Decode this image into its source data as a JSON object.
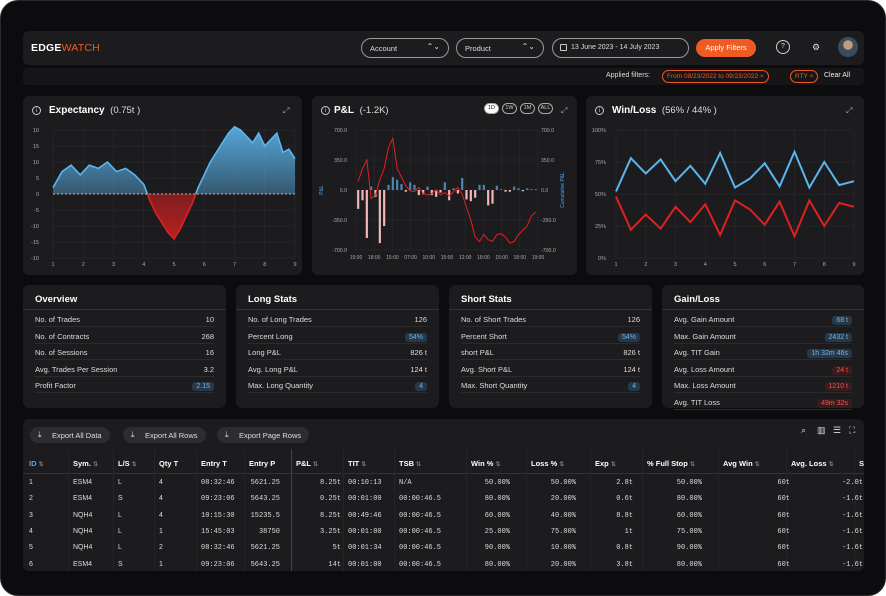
{
  "app": {
    "logo_part1": "EDGE",
    "logo_part2": "WATCH"
  },
  "topbar": {
    "account_label": "Account",
    "product_label": "Product",
    "date_range": "13 June 2023 - 14 July 2023",
    "apply_label": "Apply Filters",
    "help_icon": "?",
    "settings_icon": "⚙"
  },
  "filters": {
    "label": "Applied filters:",
    "date_pill": "From 08/23/2022 to 09/23/2022 ×",
    "symbol_pill": "RTY ×",
    "clear_label": "Clear All"
  },
  "expectancy": {
    "title": "Expectancy",
    "value": "(0.75t )",
    "chart_data": {
      "type": "area",
      "x_ticks": [
        "1",
        "2",
        "3",
        "4",
        "5",
        "6",
        "7",
        "8",
        "9"
      ],
      "y_ticks": [
        "10",
        "15",
        "10",
        "5",
        "0",
        "-5",
        "-10",
        "-15",
        "-10"
      ],
      "ylim": [
        -20,
        20
      ],
      "x": [
        1.0,
        1.3,
        1.6,
        1.9,
        2.2,
        2.5,
        2.8,
        3.1,
        3.4,
        3.7,
        4.0,
        4.2,
        4.4,
        4.6,
        4.8,
        5.0,
        5.2,
        5.4,
        5.6,
        5.8,
        6.0,
        6.2,
        6.4,
        6.6,
        6.8,
        7.0,
        7.2,
        7.4,
        7.6,
        7.8,
        8.0,
        8.2,
        8.4,
        8.6,
        8.8,
        9.0
      ],
      "y": [
        2,
        7,
        9,
        6,
        9,
        8,
        10,
        7,
        8,
        6,
        3,
        -2,
        -6,
        -9,
        -12,
        -14,
        -11,
        -7,
        -3,
        2,
        6,
        10,
        13,
        16,
        19,
        21,
        20,
        18,
        16,
        19,
        15,
        17,
        19,
        13,
        14,
        11
      ],
      "colors": {
        "positive": "#5cb6ee",
        "negative": "#e02020"
      }
    }
  },
  "pnl": {
    "title": "P&L",
    "value": "(-1.2K)",
    "ranges": [
      "1D",
      "1W",
      "1M",
      "ALL"
    ],
    "chart_data": {
      "type": "bar",
      "x_ticks": [
        "15:00",
        "18:00",
        "15:00",
        "07:00",
        "10:00",
        "15:00",
        "12:00",
        "18:00",
        "15:00",
        "18:00",
        "19:00"
      ],
      "y_ticks": [
        "700.0",
        "350.0",
        "0.0",
        "-350.0",
        "-700.0"
      ],
      "right_ticks": [
        "700.0",
        "350.0",
        "0.0",
        "-350.0",
        "-700.0"
      ],
      "ylabel": "P&L",
      "y2label": "Cumulative P&L",
      "ylim": [
        -700,
        700
      ],
      "bar_values": [
        -220,
        -120,
        -560,
        40,
        -80,
        -620,
        -420,
        60,
        150,
        120,
        70,
        -20,
        90,
        60,
        -60,
        -50,
        40,
        -60,
        -80,
        -30,
        90,
        -120,
        20,
        -40,
        140,
        -110,
        -130,
        -90,
        60,
        60,
        -180,
        -160,
        50,
        10,
        -20,
        -20,
        40,
        20,
        -15,
        20,
        10,
        10
      ],
      "cumulative_line": [
        100,
        250,
        350,
        -100,
        -60,
        120,
        250,
        500,
        600,
        250,
        150,
        50,
        -10,
        -20,
        30,
        -40,
        -60,
        -40,
        0,
        -60,
        -30,
        -70,
        -20,
        30,
        -50,
        -200,
        -350,
        -550,
        -600,
        -520,
        -580,
        -600,
        -520,
        -510,
        -550,
        -620,
        -600,
        -520,
        -470,
        -420,
        -300,
        -260
      ]
    }
  },
  "winloss": {
    "title": "Win/Loss",
    "value": "(56% / 44% )",
    "chart_data": {
      "type": "line",
      "x_ticks": [
        "1",
        "2",
        "3",
        "4",
        "5",
        "6",
        "7",
        "8",
        "9"
      ],
      "y_ticks": [
        "100%",
        "75%",
        "50%",
        "25%",
        "0%"
      ],
      "ylim": [
        0,
        100
      ],
      "x": [
        1,
        1.5,
        2,
        2.5,
        3,
        3.5,
        4,
        4.5,
        5,
        5.5,
        6,
        6.5,
        7,
        7.5,
        8,
        8.5,
        9
      ],
      "series": [
        {
          "name": "Win",
          "color": "#5cb6ee",
          "values": [
            52,
            78,
            66,
            77,
            60,
            72,
            58,
            82,
            55,
            62,
            74,
            56,
            83,
            55,
            75,
            57,
            60
          ]
        },
        {
          "name": "Loss",
          "color": "#e02020",
          "values": [
            48,
            22,
            34,
            23,
            40,
            28,
            42,
            18,
            45,
            38,
            26,
            44,
            17,
            45,
            25,
            43,
            40
          ]
        }
      ]
    }
  },
  "overview": {
    "title": "Overview",
    "rows": [
      {
        "k": "No. of Trades",
        "v": "10"
      },
      {
        "k": "No. of Contracts",
        "v": "268"
      },
      {
        "k": "No. of Sessions",
        "v": "16"
      },
      {
        "k": "Avg. Trades Per Session",
        "v": "3.2"
      },
      {
        "k": "Profit Factor",
        "v": "2.15"
      }
    ]
  },
  "long": {
    "title": "Long Stats",
    "rows": [
      {
        "k": "No. of Long Trades",
        "v": "126"
      },
      {
        "k": "Percent Long",
        "v": "54%"
      },
      {
        "k": "Long P&L",
        "v": "826 t"
      },
      {
        "k": "Avg. Long P&L",
        "v": "124 t"
      },
      {
        "k": "Max. Long Quantity",
        "v": "4"
      }
    ]
  },
  "short": {
    "title": "Short Stats",
    "rows": [
      {
        "k": "No. of Short Trades",
        "v": "126"
      },
      {
        "k": "Percent Short",
        "v": "54%"
      },
      {
        "k": "short P&L",
        "v": "826 t"
      },
      {
        "k": "Avg. Short P&L",
        "v": "124 t"
      },
      {
        "k": "Max. Short Quantity",
        "v": "4"
      }
    ]
  },
  "gainloss": {
    "title": "Gain/Loss",
    "rows": [
      {
        "k": "Avg. Gain Amount",
        "v": "68 t"
      },
      {
        "k": "Max. Gain Amount",
        "v": "2432 t"
      },
      {
        "k": "Avg. TIT Gain",
        "v": "1h 32m 46s"
      },
      {
        "k": "Avg. Loss Amount",
        "v": "24 t"
      },
      {
        "k": "Max. Loss Amount",
        "v": "1210 t"
      },
      {
        "k": "Avg. TIT Loss",
        "v": "49m 32s"
      }
    ]
  },
  "table": {
    "export_all": "Export All Data",
    "export_rows": "Export All Rows",
    "export_page": "Export Page Rows",
    "headers": [
      "ID",
      "Sym.",
      "L/S",
      "Qty T",
      "Entry T",
      "Entry P",
      "P&L",
      "TIT",
      "TSB",
      "Win %",
      "Loss %",
      "Exp",
      "% Full Stop",
      "Avg Win",
      "Avg. Loss",
      "S"
    ],
    "rows": [
      [
        "1",
        "ESM4",
        "L",
        "4",
        "08:32:46",
        "5621.25",
        "8.25t",
        "00:10:13",
        "N/A",
        "50.00%",
        "50.00%",
        "2.8t",
        "50.00%",
        "60t",
        "-2.0t"
      ],
      [
        "2",
        "ESM4",
        "S",
        "4",
        "09:23:06",
        "5643.25",
        "0.25t",
        "00:01:00",
        "00:00:46.5",
        "80.00%",
        "20.00%",
        "0.6t",
        "80.00%",
        "60t",
        "-1.6t"
      ],
      [
        "3",
        "NQH4",
        "L",
        "4",
        "10:15:30",
        "15235.5",
        "8.25t",
        "00:49:46",
        "00:00:46.5",
        "60.00%",
        "40.00%",
        "8.8t",
        "60.00%",
        "60t",
        "-1.6t"
      ],
      [
        "4",
        "NQH4",
        "L",
        "1",
        "15:45:03",
        "38750",
        "3.25t",
        "00:01:00",
        "00:00:46.5",
        "25.00%",
        "75.00%",
        "1t",
        "75.00%",
        "60t",
        "-1.6t"
      ],
      [
        "5",
        "NQH4",
        "L",
        "2",
        "08:32:46",
        "5621.25",
        "5t",
        "00:01:34",
        "00:00:46.5",
        "90.00%",
        "10.00%",
        "0.8t",
        "90.00%",
        "60t",
        "-1.6t"
      ],
      [
        "6",
        "ESM4",
        "S",
        "1",
        "09:23:06",
        "5643.25",
        "14t",
        "00:01:00",
        "00:00:46.5",
        "80.00%",
        "20.00%",
        "3.8t",
        "80.00%",
        "60t",
        "-1.6t"
      ]
    ]
  }
}
